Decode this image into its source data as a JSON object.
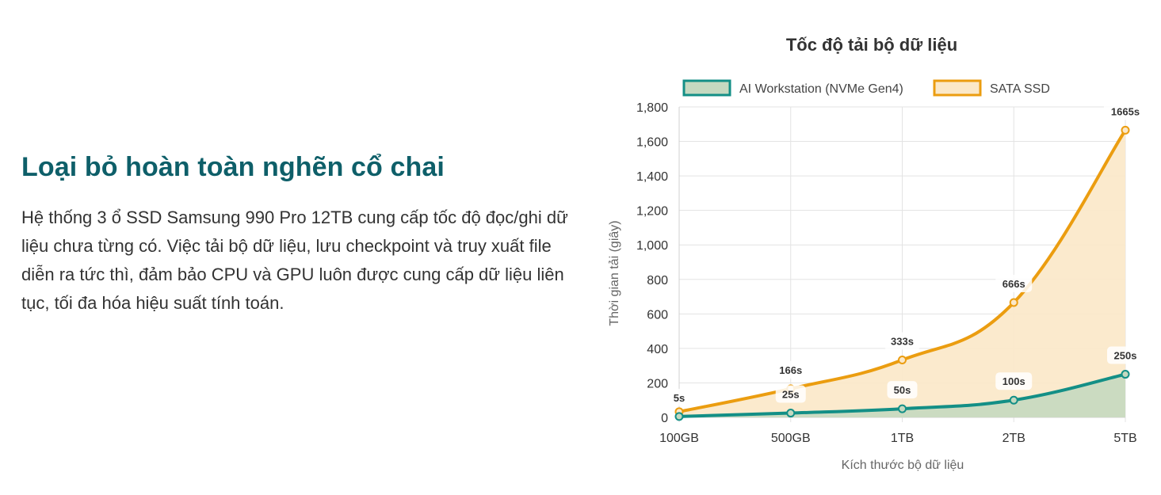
{
  "section": {
    "heading": "Loại bỏ hoàn toàn nghẽn cổ chai",
    "body": "Hệ thống 3 ổ SSD Samsung 990 Pro 12TB cung cấp tốc độ đọc/ghi dữ liệu chưa từng có. Việc tải bộ dữ liệu, lưu checkpoint và truy xuất file diễn ra tức thì, đảm bảo CPU và GPU luôn được cung cấp dữ liệu liên tục, tối đa hóa hiệu suất tính toán."
  },
  "chart_data": {
    "type": "area",
    "title": "Tốc độ tải bộ dữ liệu",
    "xlabel": "Kích thước bộ dữ liệu",
    "ylabel": "Thời gian tải (giây)",
    "categories": [
      "100GB",
      "500GB",
      "1TB",
      "2TB",
      "5TB"
    ],
    "ylim": [
      0,
      1800
    ],
    "yticks": [
      "0",
      "200",
      "400",
      "600",
      "800",
      "1,000",
      "1,200",
      "1,400",
      "1,600",
      "1,800"
    ],
    "ytick_values": [
      0,
      200,
      400,
      600,
      800,
      1000,
      1200,
      1400,
      1600,
      1800
    ],
    "grid": true,
    "legend_position": "top",
    "series": [
      {
        "name": "AI Workstation (NVMe Gen4)",
        "values": [
          5,
          25,
          50,
          100,
          250
        ],
        "labels": [
          "5s",
          "25s",
          "50s",
          "100s",
          "250s"
        ],
        "color": "#138f86",
        "fill": "#c5d9c0"
      },
      {
        "name": "SATA SSD",
        "values": [
          33,
          166,
          333,
          666,
          1665
        ],
        "labels": [
          "",
          "166s",
          "333s",
          "666s",
          "1665s"
        ],
        "color": "#eb9d10",
        "fill": "#fbe8c8"
      }
    ]
  }
}
